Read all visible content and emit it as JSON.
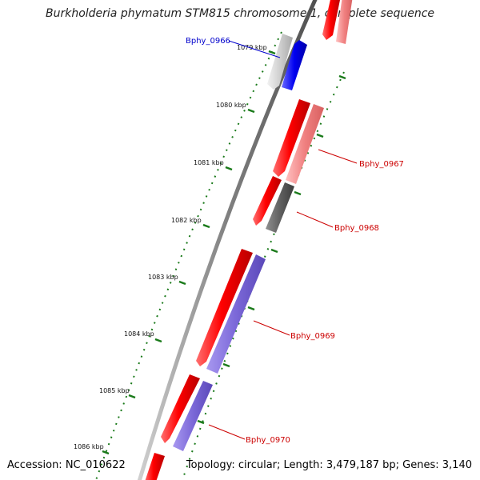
{
  "title": "Burkholderia phymatum STM815 chromosome 1, complete sequence",
  "footer": {
    "accession": "Accession: NC_010622",
    "topology": "Topology: circular; Length: 3,479,187 bp; Genes: 3,140"
  },
  "colors": {
    "forward_cds": "#e60000",
    "forward_light": "#f08080",
    "reverse_blue": "#0000ee",
    "reverse_purple": "#7b68d8",
    "grey_gene": "#c8c8c8",
    "dark_grey_gene": "#606060",
    "backbone": "#888888",
    "tick": "#1a7a1a",
    "label_red": "#cc0000",
    "label_blue": "#0000cc"
  },
  "kbp_labels": [
    {
      "id": "kbp-1079",
      "text": "1079 kbp"
    },
    {
      "id": "kbp-1080",
      "text": "1080 kbp"
    },
    {
      "id": "kbp-1081",
      "text": "1081 kbp"
    },
    {
      "id": "kbp-1082",
      "text": "1082 kbp"
    },
    {
      "id": "kbp-1083",
      "text": "1083 kbp"
    },
    {
      "id": "kbp-1084",
      "text": "1084 kbp"
    },
    {
      "id": "kbp-1085",
      "text": "1085 kbp"
    },
    {
      "id": "kbp-1086",
      "text": "1086 kbp"
    }
  ],
  "gene_labels": [
    {
      "id": "bphy-0966",
      "text": "Bphy_0966",
      "color": "blue"
    },
    {
      "id": "bphy-0967",
      "text": "Bphy_0967",
      "color": "red"
    },
    {
      "id": "bphy-0968",
      "text": "Bphy_0968",
      "color": "red"
    },
    {
      "id": "bphy-0969",
      "text": "Bphy_0969",
      "color": "red"
    },
    {
      "id": "bphy-0970",
      "text": "Bphy_0970",
      "color": "red"
    }
  ]
}
